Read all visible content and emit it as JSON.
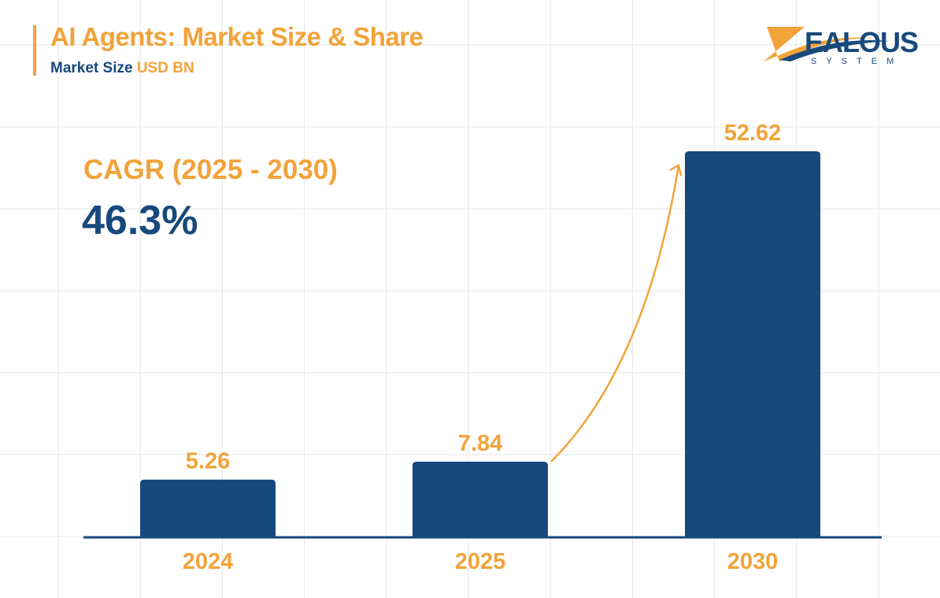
{
  "header": {
    "title": "AI Agents: Market Size & Share",
    "subtitle": "Market Size",
    "unit": "USD BN"
  },
  "logo": {
    "text": "ZEALOUS",
    "subtext": "SYSTEM"
  },
  "cagr": {
    "label": "CAGR (2025 - 2030)",
    "value": "46.3%"
  },
  "colors": {
    "bar": "#17497c",
    "accent": "#f2a33a",
    "grid": "#e6e6e6"
  },
  "chart_data": {
    "type": "bar",
    "title": "AI Agents: Market Size & Share",
    "ylabel": "Market Size USD BN",
    "categories": [
      "2024",
      "2025",
      "2030"
    ],
    "values": [
      5.26,
      7.84,
      52.62
    ],
    "data_labels": [
      "5.26",
      "7.84",
      "52.62"
    ],
    "grid": true,
    "annotations": [
      {
        "type": "arrow",
        "from": "2025",
        "to": "2030"
      }
    ]
  }
}
